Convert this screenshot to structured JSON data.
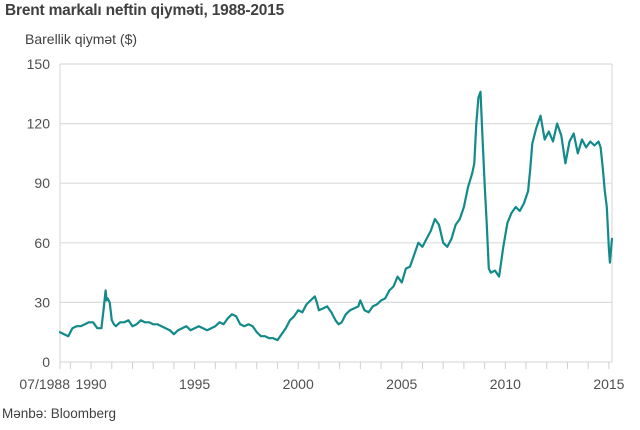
{
  "chart_data": {
    "type": "line",
    "title": "Brent markalı neftin qiyməti, 1988-2015",
    "ylabel": "Barellik qiymət ($)",
    "xlabel": "",
    "source": "Mənbə: Bloomberg",
    "ylim": [
      0,
      150
    ],
    "xlim": [
      1988.5,
      2015.15
    ],
    "grid": true,
    "line_color": "#138a8a",
    "yticks": [
      {
        "value": 0,
        "label": "0"
      },
      {
        "value": 30,
        "label": "30"
      },
      {
        "value": 60,
        "label": "60"
      },
      {
        "value": 90,
        "label": "90"
      },
      {
        "value": 120,
        "label": "120"
      },
      {
        "value": 150,
        "label": "150"
      }
    ],
    "xticks": [
      {
        "value": 1988.5,
        "label": "07/1988"
      },
      {
        "value": 1990,
        "label": "1990"
      },
      {
        "value": 1995,
        "label": "1995"
      },
      {
        "value": 2000,
        "label": "2000"
      },
      {
        "value": 2005,
        "label": "2005"
      },
      {
        "value": 2010,
        "label": "2010"
      },
      {
        "value": 2015,
        "label": "2015"
      }
    ],
    "minor_xticks": [
      1989,
      1991,
      1992,
      1993,
      1994,
      1996,
      1997,
      1998,
      1999,
      2001,
      2002,
      2003,
      2004,
      2006,
      2007,
      2008,
      2009,
      2011,
      2012,
      2013,
      2014
    ],
    "series": [
      {
        "name": "Brent",
        "x": [
          1988.5,
          1988.7,
          1988.9,
          1989.1,
          1989.3,
          1989.5,
          1989.7,
          1989.9,
          1990.1,
          1990.3,
          1990.5,
          1990.6,
          1990.7,
          1990.75,
          1990.8,
          1990.9,
          1991.0,
          1991.1,
          1991.2,
          1991.4,
          1991.6,
          1991.8,
          1992.0,
          1992.2,
          1992.4,
          1992.6,
          1992.8,
          1993.0,
          1993.2,
          1993.4,
          1993.6,
          1993.8,
          1994.0,
          1994.2,
          1994.4,
          1994.6,
          1994.8,
          1995.0,
          1995.2,
          1995.4,
          1995.6,
          1995.8,
          1996.0,
          1996.2,
          1996.4,
          1996.6,
          1996.8,
          1997.0,
          1997.2,
          1997.4,
          1997.6,
          1997.8,
          1998.0,
          1998.2,
          1998.4,
          1998.6,
          1998.8,
          1999.0,
          1999.2,
          1999.4,
          1999.6,
          1999.8,
          2000.0,
          2000.2,
          2000.4,
          2000.6,
          2000.8,
          2000.9,
          2001.0,
          2001.2,
          2001.4,
          2001.6,
          2001.8,
          2001.95,
          2002.1,
          2002.3,
          2002.5,
          2002.7,
          2002.9,
          2003.0,
          2003.2,
          2003.4,
          2003.6,
          2003.8,
          2004.0,
          2004.2,
          2004.4,
          2004.6,
          2004.8,
          2005.0,
          2005.2,
          2005.4,
          2005.6,
          2005.8,
          2006.0,
          2006.2,
          2006.4,
          2006.6,
          2006.8,
          2007.0,
          2007.2,
          2007.4,
          2007.6,
          2007.8,
          2008.0,
          2008.2,
          2008.4,
          2008.5,
          2008.6,
          2008.7,
          2008.8,
          2008.9,
          2009.0,
          2009.1,
          2009.2,
          2009.3,
          2009.5,
          2009.7,
          2009.9,
          2010.1,
          2010.3,
          2010.5,
          2010.7,
          2010.9,
          2011.1,
          2011.2,
          2011.3,
          2011.5,
          2011.7,
          2011.9,
          2012.1,
          2012.3,
          2012.5,
          2012.7,
          2012.9,
          2013.1,
          2013.3,
          2013.5,
          2013.7,
          2013.9,
          2014.1,
          2014.3,
          2014.5,
          2014.6,
          2014.7,
          2014.8,
          2014.9,
          2015.0,
          2015.05,
          2015.15
        ],
        "values": [
          15,
          14,
          13,
          17,
          18,
          18,
          19,
          20,
          20,
          17,
          17,
          26,
          36,
          31,
          32,
          30,
          21,
          19,
          18,
          20,
          20,
          21,
          18,
          19,
          21,
          20,
          20,
          19,
          19,
          18,
          17,
          16,
          14,
          16,
          17,
          18,
          16,
          17,
          18,
          17,
          16,
          17,
          18,
          20,
          19,
          22,
          24,
          23,
          19,
          18,
          19,
          18,
          15,
          13,
          13,
          12,
          12,
          11,
          14,
          17,
          21,
          23,
          26,
          25,
          29,
          31,
          33,
          30,
          26,
          27,
          28,
          25,
          21,
          19,
          20,
          24,
          26,
          27,
          28,
          31,
          26,
          25,
          28,
          29,
          31,
          32,
          36,
          38,
          43,
          40,
          47,
          48,
          54,
          60,
          58,
          62,
          66,
          72,
          69,
          60,
          58,
          62,
          69,
          72,
          78,
          88,
          95,
          100,
          120,
          133,
          136,
          113,
          90,
          70,
          47,
          45,
          46,
          43,
          58,
          70,
          75,
          78,
          76,
          80,
          86,
          97,
          110,
          118,
          124,
          112,
          116,
          111,
          120,
          114,
          100,
          111,
          115,
          105,
          112,
          108,
          111,
          109,
          111,
          108,
          98,
          86,
          78,
          57,
          50,
          62
        ]
      }
    ]
  }
}
